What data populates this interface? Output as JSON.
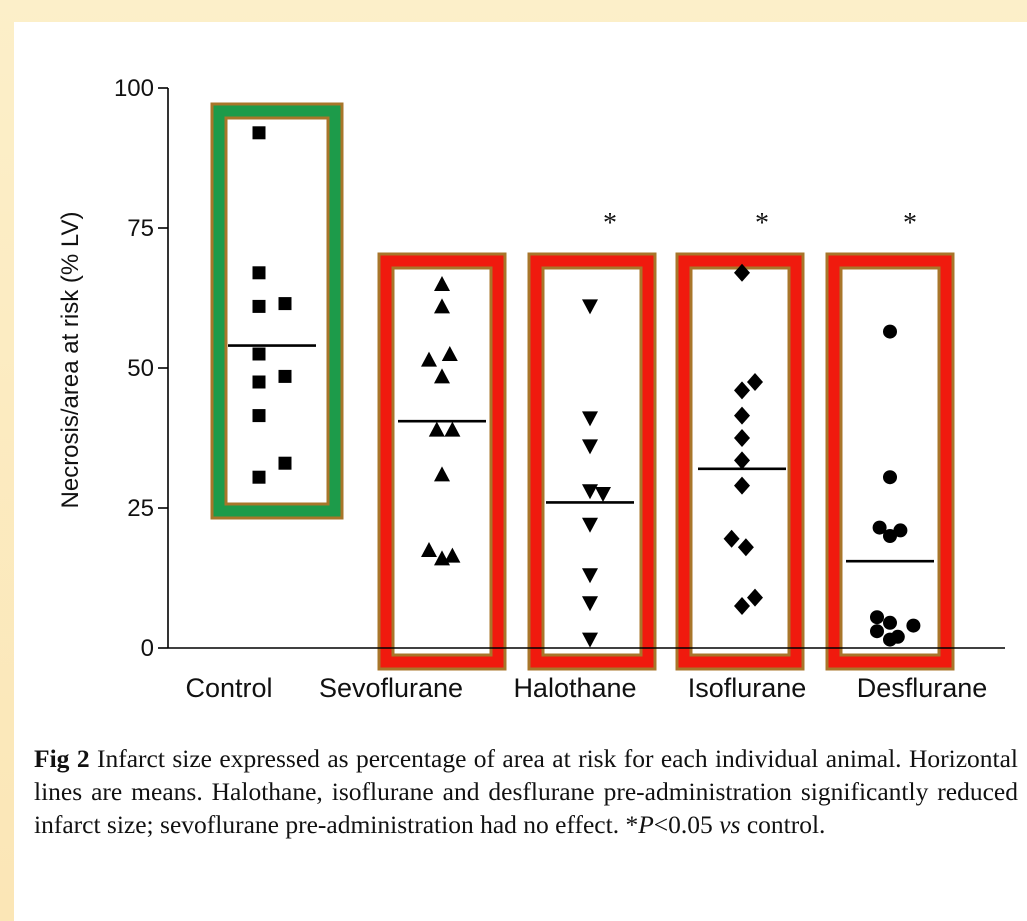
{
  "chart_data": {
    "type": "scatter",
    "title": "",
    "xlabel": "",
    "ylabel": "Necrosis/area at risk (% LV)",
    "ylim": [
      0,
      100
    ],
    "y_ticks": [
      0,
      25,
      50,
      75,
      100
    ],
    "grid": false,
    "categories": [
      "Control",
      "Sevoflurane",
      "Halothane",
      "Isoflurane",
      "Desflurane"
    ],
    "series": [
      {
        "category": "Control",
        "marker": "square",
        "mean": 54,
        "significance": "",
        "highlight": "green",
        "points": [
          {
            "offset": -1,
            "y": 92
          },
          {
            "offset": -1,
            "y": 67
          },
          {
            "offset": -1,
            "y": 61
          },
          {
            "offset": 1,
            "y": 61.5
          },
          {
            "offset": -1,
            "y": 52.5
          },
          {
            "offset": -1,
            "y": 47.5
          },
          {
            "offset": 1,
            "y": 48.5
          },
          {
            "offset": -1,
            "y": 41.5
          },
          {
            "offset": 1,
            "y": 33
          },
          {
            "offset": -1,
            "y": 30.5
          }
        ]
      },
      {
        "category": "Sevoflurane",
        "marker": "triangle-up",
        "mean": 40.5,
        "significance": "",
        "highlight": "red",
        "points": [
          {
            "offset": 0,
            "y": 65
          },
          {
            "offset": 0,
            "y": 61
          },
          {
            "offset": -1,
            "y": 51.5
          },
          {
            "offset": 0.6,
            "y": 52.5
          },
          {
            "offset": 0,
            "y": 48.5
          },
          {
            "offset": -0.4,
            "y": 39
          },
          {
            "offset": 0.8,
            "y": 39
          },
          {
            "offset": 0,
            "y": 31
          },
          {
            "offset": -1,
            "y": 17.5
          },
          {
            "offset": 0,
            "y": 16
          },
          {
            "offset": 0.8,
            "y": 16.5
          }
        ]
      },
      {
        "category": "Halothane",
        "marker": "triangle-down",
        "mean": 26,
        "significance": "*",
        "highlight": "red",
        "points": [
          {
            "offset": 0,
            "y": 61
          },
          {
            "offset": 0,
            "y": 41
          },
          {
            "offset": 0,
            "y": 36
          },
          {
            "offset": 0,
            "y": 28
          },
          {
            "offset": 1,
            "y": 27.5
          },
          {
            "offset": 0,
            "y": 22
          },
          {
            "offset": 0,
            "y": 13
          },
          {
            "offset": 0,
            "y": 8
          },
          {
            "offset": 0,
            "y": 1.5
          }
        ]
      },
      {
        "category": "Isoflurane",
        "marker": "diamond",
        "mean": 32,
        "significance": "*",
        "highlight": "red",
        "points": [
          {
            "offset": 0,
            "y": 67
          },
          {
            "offset": 0,
            "y": 46
          },
          {
            "offset": 1,
            "y": 47.5
          },
          {
            "offset": 0,
            "y": 41.5
          },
          {
            "offset": 0,
            "y": 37.5
          },
          {
            "offset": 0,
            "y": 33.5
          },
          {
            "offset": 0,
            "y": 29
          },
          {
            "offset": -0.8,
            "y": 19.5
          },
          {
            "offset": 0.3,
            "y": 18
          },
          {
            "offset": 0,
            "y": 7.5
          },
          {
            "offset": 1,
            "y": 9
          }
        ]
      },
      {
        "category": "Desflurane",
        "marker": "circle",
        "mean": 15.5,
        "significance": "*",
        "highlight": "red",
        "points": [
          {
            "offset": 0,
            "y": 56.5
          },
          {
            "offset": 0,
            "y": 30.5
          },
          {
            "offset": -0.8,
            "y": 21.5
          },
          {
            "offset": 0,
            "y": 20
          },
          {
            "offset": 0.8,
            "y": 21
          },
          {
            "offset": -1,
            "y": 5.5
          },
          {
            "offset": -1,
            "y": 3
          },
          {
            "offset": 0,
            "y": 4.5
          },
          {
            "offset": 0,
            "y": 1.5
          },
          {
            "offset": 0.6,
            "y": 2
          },
          {
            "offset": 1.8,
            "y": 4
          }
        ]
      }
    ],
    "colors": {
      "highlight_green": "#1d9b4a",
      "highlight_red": "#f01a0e",
      "highlight_border": "#a8762a",
      "marks": "#000000"
    }
  },
  "caption": {
    "fig_label": "Fig 2",
    "text": " Infarct size expressed as percentage of area at risk for each individual animal. Horizontal lines are means. Halothane, isoflurane and desflurane pre-administration significantly reduced infarct size; sevoflurane pre-administration had no effect. *",
    "p_symbol": "P",
    "p_rest": "<0.05 ",
    "vs": "vs",
    "tail": " control."
  }
}
